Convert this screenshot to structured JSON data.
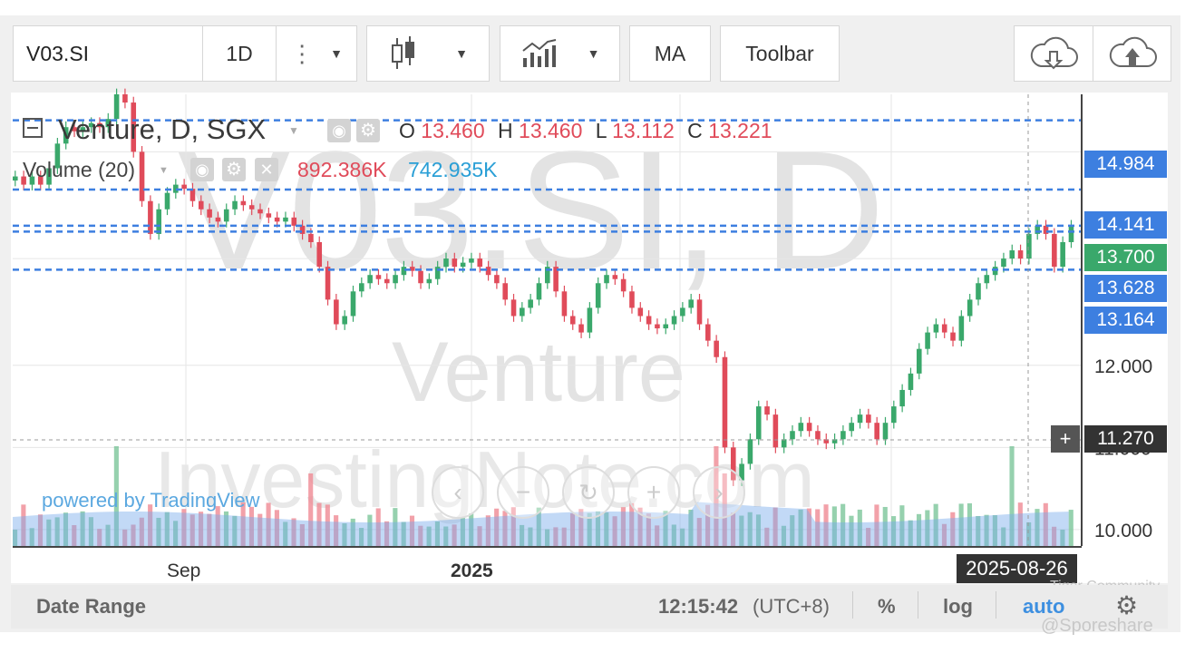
{
  "toolbar": {
    "symbol": "V03.SI",
    "interval": "1D",
    "ma_label": "MA",
    "toolbar_label": "Toolbar"
  },
  "legend": {
    "title": "Venture, D, SGX",
    "o_label": "O",
    "o_value": "13.460",
    "h_label": "H",
    "h_value": "13.460",
    "l_label": "L",
    "l_value": "13.112",
    "c_label": "C",
    "c_value": "13.221",
    "volume_label": "Volume (20)",
    "volume_value": "892.386K",
    "volume_ma_value": "742.935K"
  },
  "watermark": {
    "symbol": "V03.SI, D",
    "name": "Venture",
    "site": "InvestingNote.com",
    "powered_by": "powered by TradingView",
    "community": "Tiger Community",
    "handle": "@Sporeshare"
  },
  "price_tags": [
    {
      "value": "14.984",
      "color": "#3d7fe0"
    },
    {
      "value": "14.141",
      "color": "#3d7fe0"
    },
    {
      "value": "13.700",
      "color": "#3aa86b"
    },
    {
      "value": "13.628",
      "color": "#3d7fe0"
    },
    {
      "value": "13.164",
      "color": "#3d7fe0"
    }
  ],
  "crosshair_value": "11.270",
  "crosshair_date": "2025-08-26",
  "bottom_bar": {
    "date_range": "Date Range",
    "time": "12:15:42",
    "timezone": "(UTC+8)",
    "percent": "%",
    "log": "log",
    "auto": "auto"
  },
  "chart_data": {
    "type": "candlestick",
    "x_ticks": [
      "Sep",
      "2025"
    ],
    "y_ticks": [
      "12.000",
      "11.000",
      "10.000"
    ],
    "y_tick_values": [
      12.0,
      11.0,
      10.0
    ],
    "ylim": [
      9.8,
      15.3
    ],
    "horizontal_lines": [
      14.984,
      14.141,
      13.7,
      13.628,
      13.164
    ],
    "colors": {
      "up": "#3aa86b",
      "down": "#e04b5a",
      "line": "#3d7fe0"
    },
    "close_series": [
      14.3,
      14.2,
      14.3,
      14.2,
      14.4,
      14.7,
      14.9,
      14.85,
      14.9,
      14.95,
      14.9,
      15.0,
      15.3,
      15.2,
      14.6,
      14.0,
      13.6,
      13.9,
      14.1,
      14.2,
      14.15,
      14.0,
      13.9,
      13.8,
      13.75,
      13.9,
      14.0,
      13.95,
      13.9,
      13.85,
      13.8,
      13.75,
      13.8,
      13.7,
      13.6,
      13.5,
      13.2,
      12.8,
      12.5,
      12.6,
      12.9,
      13.0,
      13.1,
      13.05,
      13.0,
      13.1,
      13.2,
      13.15,
      13.0,
      13.05,
      13.2,
      13.3,
      13.2,
      13.25,
      13.3,
      13.2,
      13.1,
      13.0,
      12.8,
      12.6,
      12.7,
      12.8,
      13.0,
      13.2,
      12.9,
      12.6,
      12.5,
      12.4,
      12.7,
      13.0,
      13.1,
      13.05,
      12.9,
      12.7,
      12.6,
      12.5,
      12.45,
      12.5,
      12.6,
      12.7,
      12.8,
      12.5,
      12.3,
      12.1,
      11.0,
      10.6,
      10.8,
      11.1,
      11.5,
      11.4,
      11.0,
      11.1,
      11.2,
      11.3,
      11.2,
      11.1,
      11.05,
      11.1,
      11.2,
      11.3,
      11.4,
      11.3,
      11.1,
      11.3,
      11.5,
      11.7,
      11.9,
      12.2,
      12.4,
      12.5,
      12.4,
      12.3,
      12.6,
      12.8,
      13.0,
      13.1,
      13.2,
      13.3,
      13.4,
      13.3,
      13.6,
      13.7,
      13.6,
      13.2,
      13.5,
      13.7
    ]
  }
}
